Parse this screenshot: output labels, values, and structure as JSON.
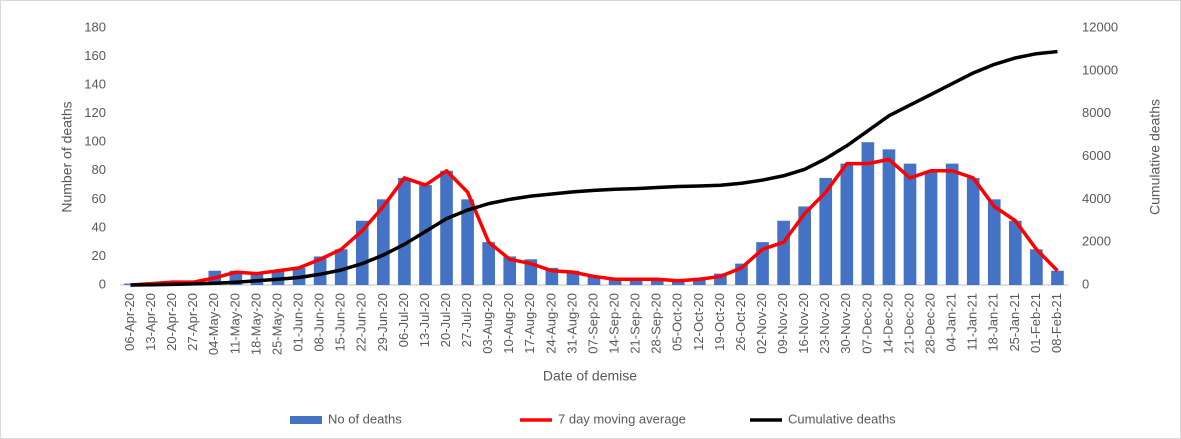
{
  "chart_data": {
    "type": "bar",
    "x_label": "Date of demise",
    "y_label": "Number of deaths",
    "y2_label": "Cumulative deaths",
    "categories": [
      "06-Apr-20",
      "13-Apr-20",
      "20-Apr-20",
      "27-Apr-20",
      "04-May-20",
      "11-May-20",
      "18-May-20",
      "25-May-20",
      "01-Jun-20",
      "08-Jun-20",
      "15-Jun-20",
      "22-Jun-20",
      "29-Jun-20",
      "06-Jul-20",
      "13-Jul-20",
      "20-Jul-20",
      "27-Jul-20",
      "03-Aug-20",
      "10-Aug-20",
      "17-Aug-20",
      "24-Aug-20",
      "31-Aug-20",
      "07-Sep-20",
      "14-Sep-20",
      "21-Sep-20",
      "28-Sep-20",
      "05-Oct-20",
      "12-Oct-20",
      "19-Oct-20",
      "26-Oct-20",
      "02-Nov-20",
      "09-Nov-20",
      "16-Nov-20",
      "23-Nov-20",
      "30-Nov-20",
      "07-Dec-20",
      "14-Dec-20",
      "21-Dec-20",
      "28-Dec-20",
      "04-Jan-21",
      "11-Jan-21",
      "18-Jan-21",
      "25-Jan-21",
      "01-Feb-21",
      "08-Feb-21"
    ],
    "series": [
      {
        "name": "No of deaths",
        "type": "bar",
        "color": "#4472c4",
        "values": [
          1,
          2,
          2,
          3,
          10,
          10,
          8,
          10,
          12,
          20,
          25,
          45,
          60,
          75,
          70,
          80,
          60,
          30,
          20,
          18,
          12,
          10,
          6,
          4,
          4,
          4,
          4,
          5,
          8,
          15,
          30,
          45,
          55,
          75,
          85,
          100,
          95,
          85,
          80,
          85,
          75,
          60,
          45,
          25,
          10
        ]
      },
      {
        "name": "7 day moving average",
        "type": "line",
        "color": "#ff0000",
        "values": [
          0,
          1,
          2,
          2,
          5,
          9,
          8,
          10,
          12,
          18,
          25,
          38,
          55,
          75,
          70,
          80,
          65,
          30,
          18,
          15,
          10,
          9,
          6,
          4,
          4,
          4,
          3,
          4,
          6,
          12,
          25,
          30,
          50,
          65,
          85,
          85,
          88,
          75,
          80,
          80,
          75,
          55,
          45,
          25,
          10
        ]
      },
      {
        "name": "Cumulative deaths",
        "type": "line",
        "axis": "y2",
        "color": "#000000",
        "values": [
          0,
          10,
          30,
          50,
          80,
          130,
          200,
          270,
          350,
          500,
          700,
          1000,
          1400,
          1900,
          2500,
          3100,
          3500,
          3800,
          4000,
          4150,
          4250,
          4350,
          4420,
          4470,
          4500,
          4550,
          4600,
          4620,
          4660,
          4750,
          4900,
          5100,
          5400,
          5900,
          6500,
          7200,
          7900,
          8400,
          8900,
          9400,
          9900,
          10300,
          10600,
          10800,
          10900
        ]
      }
    ],
    "ylim": [
      0,
      180
    ],
    "yticks": [
      0,
      20,
      40,
      60,
      80,
      100,
      120,
      140,
      160,
      180
    ],
    "y2lim": [
      0,
      12000
    ],
    "y2ticks": [
      0,
      2000,
      4000,
      6000,
      8000,
      10000,
      12000
    ],
    "legend": "bottom"
  }
}
